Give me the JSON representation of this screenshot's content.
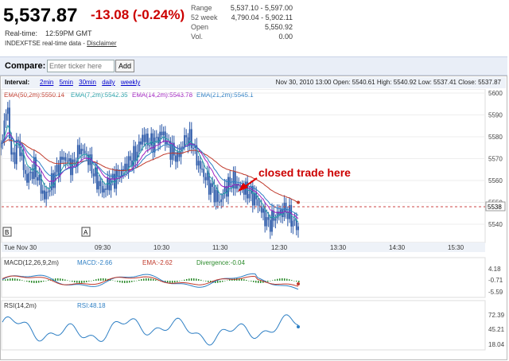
{
  "header": {
    "price": "5,537.87",
    "change": "-13.08 (-0.24%)",
    "realtime_label": "Real-time:",
    "realtime_time": "12:59PM GMT",
    "source": "INDEXFTSE real-time data -",
    "disclaimer": "Disclaimer"
  },
  "stats": [
    {
      "k": "Range",
      "v": "5,537.10 - 5,597.00"
    },
    {
      "k": "52 week",
      "v": "4,790.04 - 5,902.11"
    },
    {
      "k": "Open",
      "v": "5,550.92"
    },
    {
      "k": "Vol.",
      "v": "0.00"
    }
  ],
  "compare": {
    "label": "Compare:",
    "placeholder": "Enter ticker here",
    "button": "Add"
  },
  "interval": {
    "label": "Interval:",
    "options": [
      "2min",
      "5min",
      "30min",
      "daily",
      "weekly"
    ],
    "quote": "Nov 30, 2010 13:00 Open: 5540.61 High: 5540.92 Low: 5537.41 Close: 5537.87"
  },
  "ema_legend": [
    {
      "text": "EMA(50,2m):5550.14",
      "color": "#c0392b"
    },
    {
      "text": "EMA(7,2m):5542.35",
      "color": "#27a0a8"
    },
    {
      "text": "EMA(14,2m):5543.78",
      "color": "#a020c0"
    },
    {
      "text": "EMA(21,2m):5545.1",
      "color": "#2e7fc4"
    }
  ],
  "annotation": "closed trade here",
  "price_axis": [
    "5600",
    "5590",
    "5580",
    "5570",
    "5560",
    "5550",
    "5540"
  ],
  "time_axis": [
    "Tue Nov 30",
    "09:30",
    "10:30",
    "11:30",
    "12:30",
    "13:30",
    "14:30",
    "15:30"
  ],
  "markers": [
    "B",
    "A"
  ],
  "current_price_label": "5538",
  "macd": {
    "params": "MACD(12,26,9,2m)",
    "macd": "MACD:-2.66",
    "ema": "EMA:-2.62",
    "divergence": "Divergence:-0.04",
    "axis": [
      "4.18",
      "-0.71",
      "-5.59"
    ]
  },
  "rsi": {
    "params": "RSI(14,2m)",
    "value": "RSI:48.18",
    "axis": [
      "72.39",
      "45.21",
      "18.04"
    ]
  },
  "colors": {
    "candle": "#2a58a8",
    "down": "#cc0000"
  }
}
